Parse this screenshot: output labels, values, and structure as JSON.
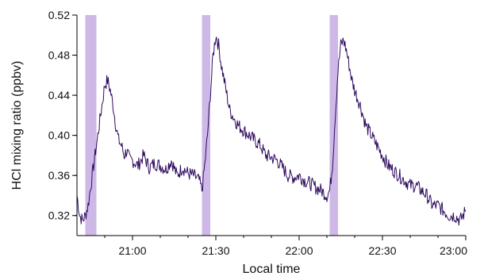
{
  "chart_data": {
    "type": "line",
    "title": "",
    "xlabel": "Local time",
    "ylabel": "HCl mixing ratio (ppbv)",
    "x_unit": "local time (HH:MM)",
    "xlim": [
      "20:40",
      "23:00"
    ],
    "ylim": [
      0.3,
      0.52
    ],
    "x_ticks": [
      "21:00",
      "21:30",
      "22:00",
      "22:30",
      "23:00"
    ],
    "y_ticks": [
      "0.32",
      "0.36",
      "0.40",
      "0.44",
      "0.48",
      "0.52"
    ],
    "grid": false,
    "legend": "none",
    "line_color": "#2e0b5e",
    "band_color": "#cdb8e8",
    "shaded_intervals": [
      {
        "start": "20:43",
        "end": "20:47"
      },
      {
        "start": "21:25",
        "end": "21:28"
      },
      {
        "start": "22:11",
        "end": "22:14"
      }
    ],
    "series": [
      {
        "x": [
          "20:40",
          "20:41",
          "20:42",
          "20:43",
          "20:44",
          "20:45",
          "20:46",
          "20:47",
          "20:48",
          "20:49",
          "20:50",
          "20:51",
          "20:52",
          "20:53",
          "20:54",
          "20:55",
          "20:56",
          "20:57",
          "20:58",
          "20:59",
          "21:00",
          "21:02",
          "21:04",
          "21:06",
          "21:08",
          "21:10",
          "21:12",
          "21:14",
          "21:16",
          "21:18",
          "21:20",
          "21:22",
          "21:24",
          "21:25",
          "21:26",
          "21:27",
          "21:28",
          "21:29",
          "21:30",
          "21:31",
          "21:32",
          "21:33",
          "21:34",
          "21:35",
          "21:36",
          "21:38",
          "21:40",
          "21:42",
          "21:44",
          "21:46",
          "21:48",
          "21:50",
          "21:52",
          "21:54",
          "21:56",
          "21:58",
          "22:00",
          "22:02",
          "22:04",
          "22:06",
          "22:08",
          "22:10",
          "22:11",
          "22:12",
          "22:13",
          "22:14",
          "22:15",
          "22:16",
          "22:17",
          "22:18",
          "22:19",
          "22:20",
          "22:22",
          "22:24",
          "22:26",
          "22:28",
          "22:30",
          "22:32",
          "22:34",
          "22:36",
          "22:38",
          "22:40",
          "22:42",
          "22:44",
          "22:46",
          "22:48",
          "22:50",
          "22:52",
          "22:54",
          "22:56",
          "22:58",
          "23:00"
        ],
        "values": [
          0.34,
          0.32,
          0.315,
          0.32,
          0.33,
          0.35,
          0.37,
          0.39,
          0.41,
          0.43,
          0.45,
          0.455,
          0.445,
          0.43,
          0.41,
          0.395,
          0.39,
          0.38,
          0.385,
          0.375,
          0.375,
          0.37,
          0.38,
          0.368,
          0.372,
          0.37,
          0.366,
          0.375,
          0.36,
          0.368,
          0.362,
          0.36,
          0.355,
          0.345,
          0.37,
          0.4,
          0.44,
          0.48,
          0.5,
          0.49,
          0.47,
          0.455,
          0.44,
          0.425,
          0.42,
          0.41,
          0.405,
          0.4,
          0.395,
          0.39,
          0.38,
          0.378,
          0.375,
          0.368,
          0.36,
          0.358,
          0.36,
          0.355,
          0.352,
          0.348,
          0.345,
          0.34,
          0.345,
          0.37,
          0.42,
          0.465,
          0.49,
          0.495,
          0.485,
          0.47,
          0.455,
          0.445,
          0.43,
          0.41,
          0.4,
          0.39,
          0.38,
          0.37,
          0.365,
          0.36,
          0.355,
          0.35,
          0.35,
          0.345,
          0.34,
          0.33,
          0.33,
          0.325,
          0.32,
          0.32,
          0.315,
          0.325
        ]
      }
    ]
  }
}
